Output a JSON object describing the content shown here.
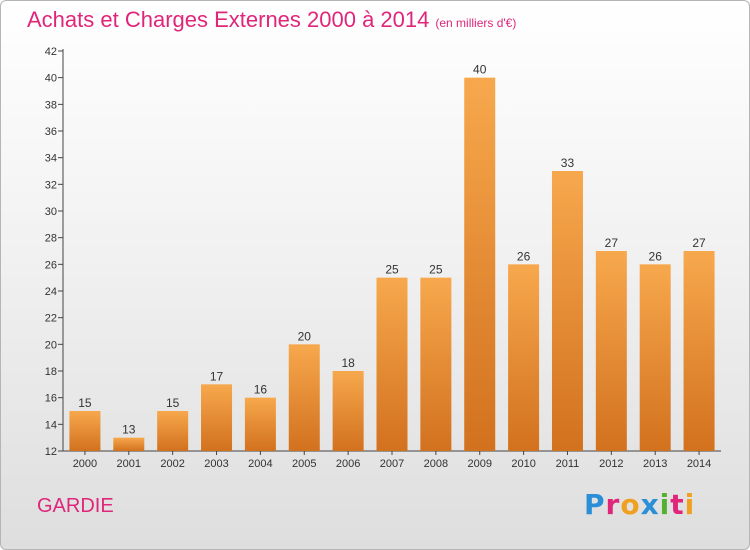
{
  "header": {
    "title": "Achats et Charges Externes 2000 à 2014",
    "subtitle": "(en milliers d'€)"
  },
  "footer": {
    "commune": "GARDIE",
    "logo_text": "Proxiti",
    "logo_colors": [
      "#2a8fd6",
      "#e0267a",
      "#f0a020",
      "#2a8fd6",
      "#55b030",
      "#e0267a",
      "#f0a020"
    ]
  },
  "colors": {
    "accent": "#e0267a",
    "bar_top": "#f7a84d",
    "bar_bottom": "#d2711e"
  },
  "chart_data": {
    "type": "bar",
    "title": "Achats et Charges Externes 2000 à 2014",
    "subtitle": "(en milliers d'€)",
    "categories": [
      "2000",
      "2001",
      "2002",
      "2003",
      "2004",
      "2005",
      "2006",
      "2007",
      "2008",
      "2009",
      "2010",
      "2011",
      "2012",
      "2013",
      "2014"
    ],
    "values": [
      15,
      13,
      15,
      17,
      16,
      20,
      18,
      25,
      25,
      40,
      26,
      33,
      27,
      26,
      27
    ],
    "ylim": [
      12,
      42
    ],
    "yticks": [
      12,
      14,
      16,
      18,
      20,
      22,
      24,
      26,
      28,
      30,
      32,
      34,
      36,
      38,
      40,
      42
    ],
    "xlabel": "",
    "ylabel": "",
    "grid": false,
    "legend": "none"
  }
}
